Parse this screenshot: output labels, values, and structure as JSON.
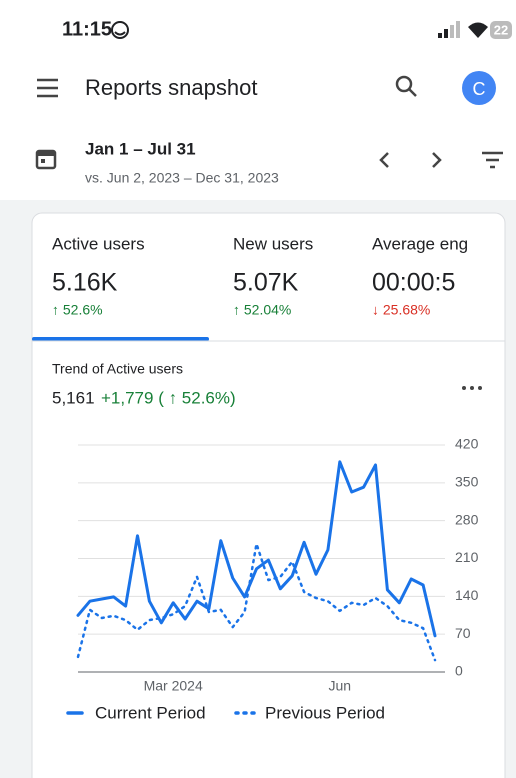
{
  "status": {
    "time": "11:15",
    "battery": "22"
  },
  "header": {
    "title": "Reports snapshot",
    "avatar": "C"
  },
  "date": {
    "range": "Jan 1 – Jul 31",
    "compare": "vs. Jun 2, 2023 – Dec 31, 2023"
  },
  "metrics": [
    {
      "label": "Active users",
      "value": "5.16K",
      "change": "↑ 52.6%",
      "color": "#188038"
    },
    {
      "label": "New users",
      "value": "5.07K",
      "change": "↑ 52.04%",
      "color": "#188038"
    },
    {
      "label": "Average eng",
      "value": "00:00:5",
      "change": "↓ 25.68%",
      "color": "#d93025"
    }
  ],
  "chart_data": {
    "type": "line",
    "title": "Trend of Active users",
    "total": "5,161",
    "delta": "+1,779 ( ↑ 52.6%)",
    "categories": [
      null,
      null,
      null,
      null,
      null,
      null,
      null,
      null,
      "Mar 2024",
      null,
      null,
      null,
      null,
      null,
      null,
      null,
      null,
      null,
      null,
      null,
      null,
      null,
      "Jun",
      null,
      null,
      null,
      null,
      null,
      null,
      null,
      null
    ],
    "series": [
      {
        "name": "Current Period",
        "color": "#1a73e8",
        "line_style": "solid",
        "values": [
          105,
          131,
          135,
          139,
          122,
          252,
          131,
          91,
          128,
          98,
          131,
          117,
          243,
          174,
          139,
          191,
          207,
          154,
          178,
          240,
          181,
          226,
          389,
          333,
          342,
          383,
          152,
          128,
          172,
          161,
          67
        ]
      },
      {
        "name": "Previous Period",
        "color": "#1a73e8",
        "line_style": "dotted",
        "values": [
          28,
          115,
          100,
          104,
          96,
          78,
          96,
          100,
          107,
          122,
          176,
          111,
          115,
          83,
          111,
          237,
          170,
          176,
          204,
          148,
          137,
          131,
          113,
          128,
          124,
          137,
          122,
          96,
          91,
          81,
          22
        ]
      }
    ],
    "ylim": [
      0,
      420
    ],
    "yticks": [
      0,
      70,
      140,
      210,
      280,
      350,
      420
    ],
    "grid": true,
    "legend": "bottom"
  }
}
